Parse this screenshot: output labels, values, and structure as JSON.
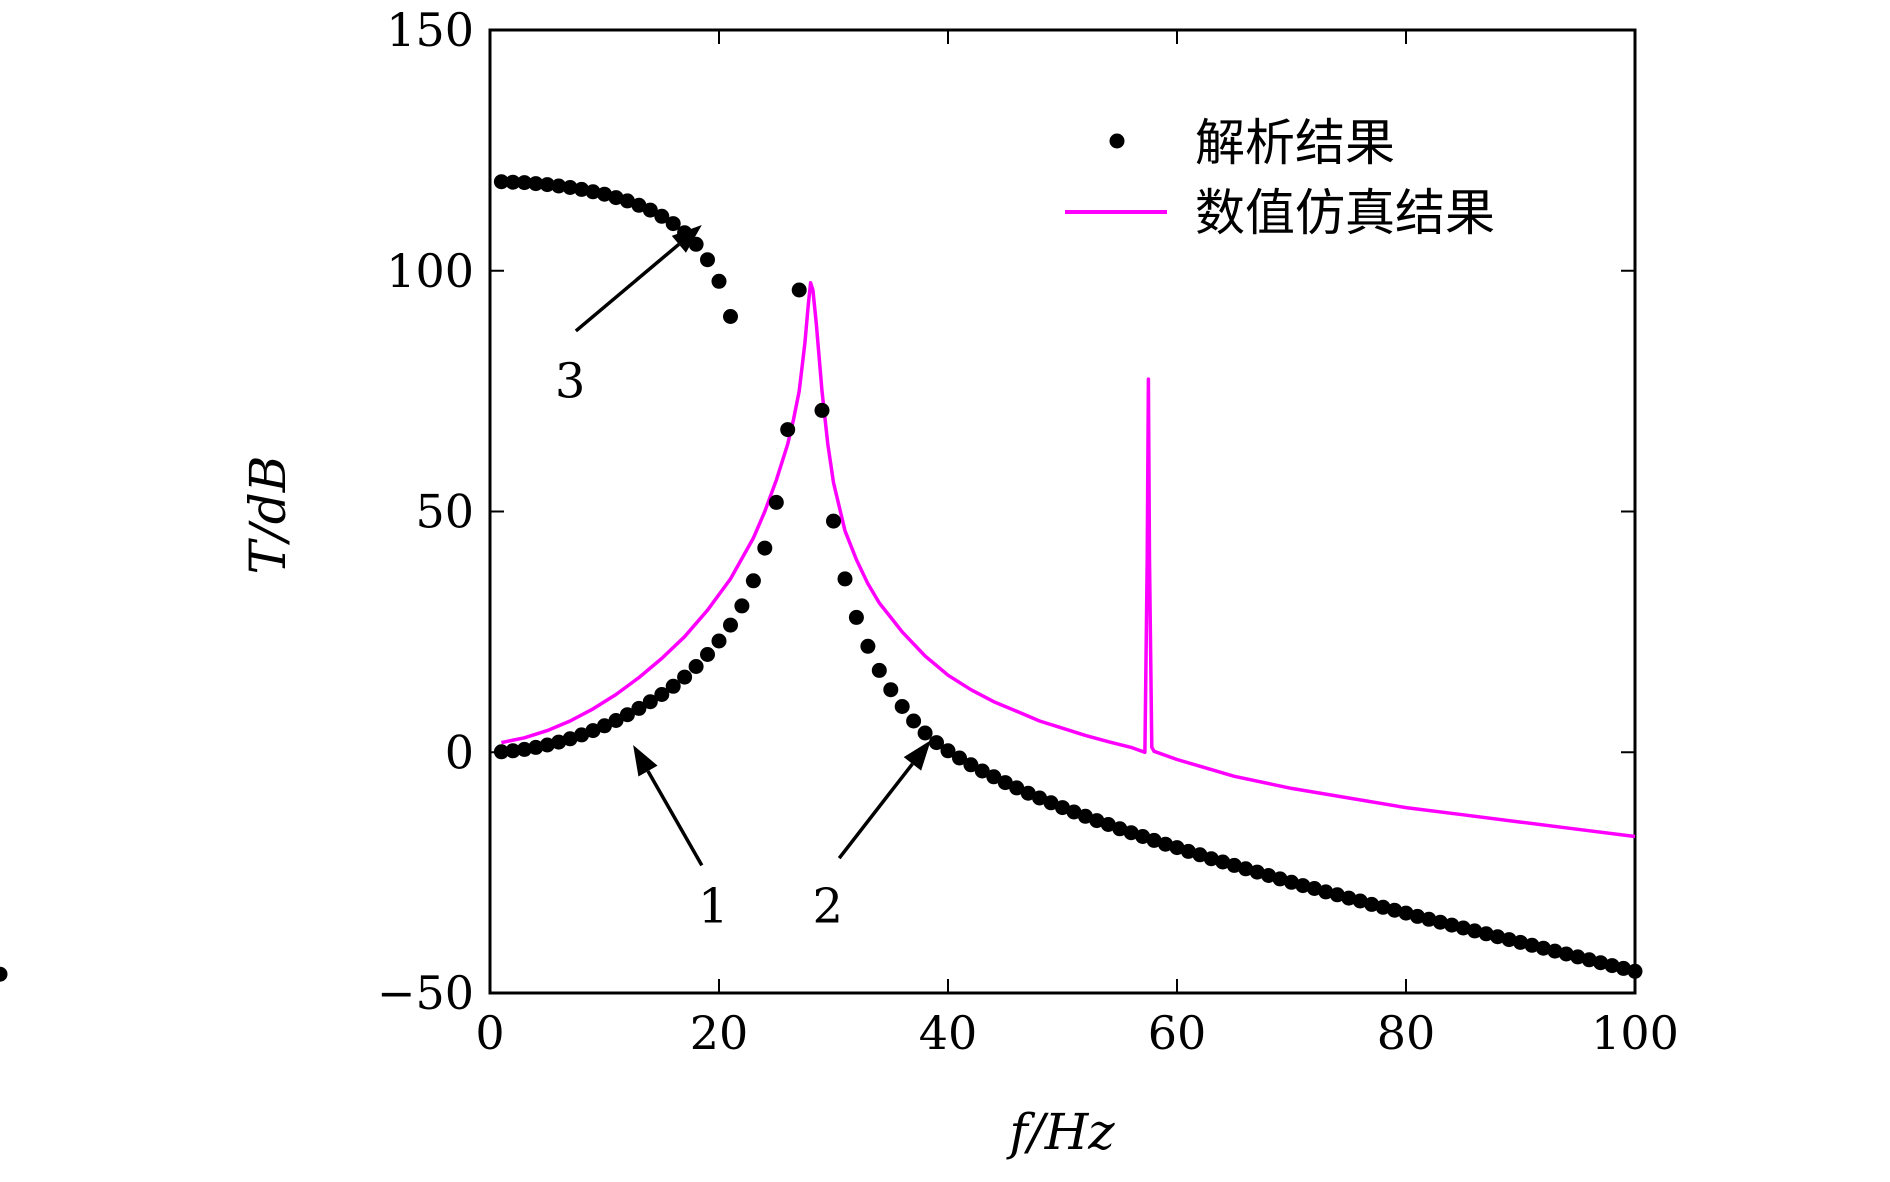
{
  "chart_data": {
    "type": "line",
    "xlabel": "f/Hz",
    "ylabel": "T/dB",
    "xlim": [
      0,
      100
    ],
    "ylim": [
      -50,
      150
    ],
    "xticks": [
      0,
      20,
      40,
      60,
      80,
      100
    ],
    "yticks": [
      -50,
      0,
      50,
      100,
      150
    ],
    "xtick_labels": [
      "0",
      "20",
      "40",
      "60",
      "80",
      "100"
    ],
    "ytick_labels": [
      "−50",
      "0",
      "50",
      "100",
      "150"
    ],
    "grid": false,
    "legend_position": "top-right",
    "legend": [
      "解析结果",
      "数值仿真结果"
    ],
    "series": [
      {
        "name": "解析结果",
        "style": "markers",
        "color": "#000000",
        "x": [
          1,
          2,
          3,
          4,
          5,
          6,
          7,
          8,
          9,
          10,
          11,
          12,
          13,
          14,
          15,
          16,
          17,
          18,
          19,
          20,
          21,
          22,
          23,
          24,
          25,
          26,
          27,
          28,
          29,
          30,
          31,
          32,
          33,
          34,
          35,
          36,
          37,
          38,
          39,
          40,
          41,
          42,
          43,
          44,
          45,
          46,
          47,
          48,
          49,
          50,
          51,
          52,
          53,
          54,
          55,
          56,
          57,
          58,
          59,
          60,
          61,
          62,
          63,
          64,
          65,
          66,
          67,
          68,
          69,
          70,
          71,
          72,
          73,
          74,
          75,
          76,
          77,
          78,
          79,
          80,
          81,
          82,
          83,
          84,
          85,
          86,
          87,
          88,
          89,
          90,
          91,
          92,
          93,
          94,
          95,
          96,
          97,
          98,
          99,
          100
        ],
        "lower_branch_y": [
          0.1,
          0.3,
          0.6,
          1.0,
          1.5,
          2.1,
          2.8,
          3.6,
          4.5,
          5.5,
          6.6,
          7.8,
          9.1,
          10.5,
          12.0,
          13.7,
          15.6,
          17.8,
          20.3,
          23.1,
          26.4,
          30.4,
          35.6,
          42.4,
          51.9,
          67.0,
          96.0
        ],
        "upper_branch_y": [
          118.5,
          118.4,
          118.3,
          118.1,
          117.9,
          117.6,
          117.3,
          116.9,
          116.4,
          115.9,
          115.2,
          114.5,
          113.6,
          112.6,
          111.3,
          109.8,
          107.9,
          105.5,
          102.3,
          97.8,
          90.5
        ],
        "tail_y": [
          71,
          48,
          36,
          28,
          22,
          17,
          13,
          9.5,
          6.5,
          4.0,
          2.0,
          0.3,
          -1.2,
          -2.6,
          -3.9,
          -5.1,
          -6.3,
          -7.4,
          -8.5,
          -9.5,
          -10.5,
          -11.5,
          -12.4,
          -13.3,
          -14.2,
          -15.0,
          -15.9,
          -16.7,
          -17.5,
          -18.3,
          -19.1,
          -19.8,
          -20.6,
          -21.3,
          -22.1,
          -22.8,
          -23.5,
          -24.2,
          -24.9,
          -25.6,
          -26.3,
          -27.0,
          -27.7,
          -28.3,
          -29.0,
          -29.6,
          -30.3,
          -30.9,
          -31.6,
          -32.2,
          -32.8,
          -33.4,
          -34.1,
          -34.7,
          -35.3,
          -35.9,
          -36.5,
          -37.1,
          -37.7,
          -38.3,
          -38.9,
          -39.5,
          -40.1,
          -40.7,
          -41.3,
          -41.9,
          -42.5,
          -43.1,
          -43.7,
          -44.3,
          -44.9,
          -45.5,
          -46.1
        ]
      },
      {
        "name": "数值仿真结果",
        "style": "line",
        "color": "#ff00ff",
        "x": [
          1,
          3,
          5,
          7,
          9,
          11,
          13,
          15,
          17,
          19,
          21,
          23,
          24,
          25,
          26,
          26.5,
          27,
          27.5,
          27.8,
          28,
          28.2,
          28.5,
          29,
          29.5,
          30,
          31,
          32,
          33,
          34,
          35,
          36,
          38,
          40,
          42,
          44,
          46,
          48,
          50,
          52,
          54,
          56,
          57.2,
          57.4,
          57.5,
          57.6,
          57.8,
          58,
          60,
          65,
          70,
          75,
          80,
          85,
          90,
          95,
          100
        ],
        "y": [
          2.0,
          3.0,
          4.5,
          6.5,
          9.0,
          12.0,
          15.5,
          19.5,
          24.0,
          29.5,
          36.0,
          44.5,
          50.0,
          56.5,
          64.0,
          69.0,
          75.0,
          85.0,
          93.0,
          97.5,
          96.0,
          89.0,
          75.0,
          64.0,
          56.0,
          46.0,
          40.0,
          35.0,
          31.0,
          28.0,
          25.0,
          20.0,
          16.0,
          13.0,
          10.5,
          8.5,
          6.5,
          5.0,
          3.5,
          2.2,
          1.0,
          0.0,
          40.0,
          77.5,
          40.0,
          1.0,
          0.2,
          -1.5,
          -5.0,
          -7.5,
          -9.5,
          -11.5,
          -13.0,
          -14.5,
          -16.0,
          -17.5
        ]
      }
    ],
    "annotations": [
      {
        "text": "1",
        "arrow_from": [
          18.5,
          -23.5
        ],
        "arrow_to": [
          12.5,
          1.5
        ],
        "label_at": [
          19.5,
          -32
        ]
      },
      {
        "text": "2",
        "arrow_from": [
          30.5,
          -22
        ],
        "arrow_to": [
          38.5,
          2.5
        ],
        "label_at": [
          29.5,
          -32
        ]
      },
      {
        "text": "3",
        "arrow_from": [
          7.5,
          87.5
        ],
        "arrow_to": [
          18.5,
          109.5
        ],
        "label_at": [
          7,
          77
        ]
      }
    ]
  }
}
